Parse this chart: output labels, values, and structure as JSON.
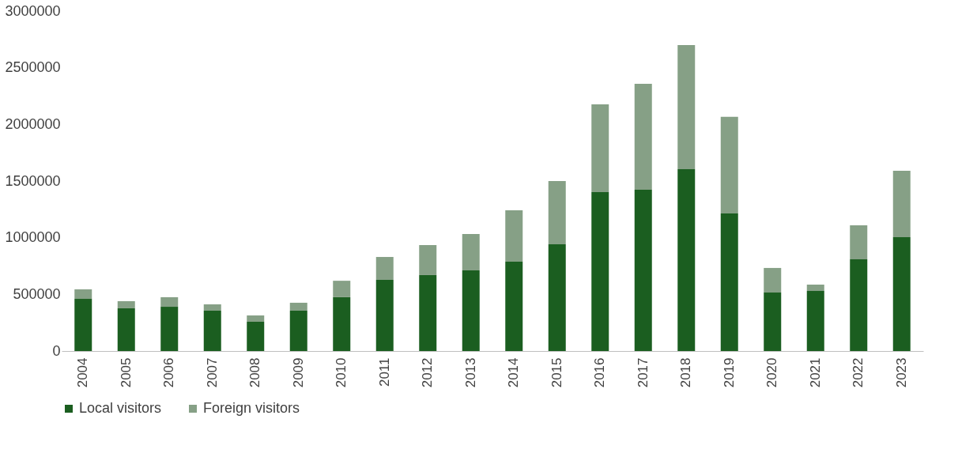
{
  "chart_data": {
    "type": "bar",
    "stacked": true,
    "categories": [
      "2004",
      "2005",
      "2006",
      "2007",
      "2008",
      "2009",
      "2010",
      "2011",
      "2012",
      "2013",
      "2014",
      "2015",
      "2016",
      "2017",
      "2018",
      "2019",
      "2020",
      "2021",
      "2022",
      "2023"
    ],
    "series": [
      {
        "name": "Local visitors",
        "color": "#1b5e20",
        "values": [
          460000,
          377000,
          390000,
          356000,
          258000,
          356000,
          475000,
          628000,
          670000,
          712000,
          789000,
          942000,
          1403000,
          1424000,
          1605000,
          1214000,
          516000,
          530000,
          810000,
          1005000
        ]
      },
      {
        "name": "Foreign visitors",
        "color": "#86a086",
        "values": [
          84000,
          63000,
          85000,
          56000,
          56000,
          70000,
          145000,
          202000,
          265000,
          321000,
          453000,
          558000,
          774000,
          935000,
          1095000,
          852000,
          217000,
          56000,
          300000,
          586000
        ]
      }
    ],
    "ylim": [
      0,
      3000000
    ],
    "yticks": [
      0,
      500000,
      1000000,
      1500000,
      2000000,
      2500000,
      3000000
    ],
    "grid": false,
    "legend": "bottom"
  }
}
